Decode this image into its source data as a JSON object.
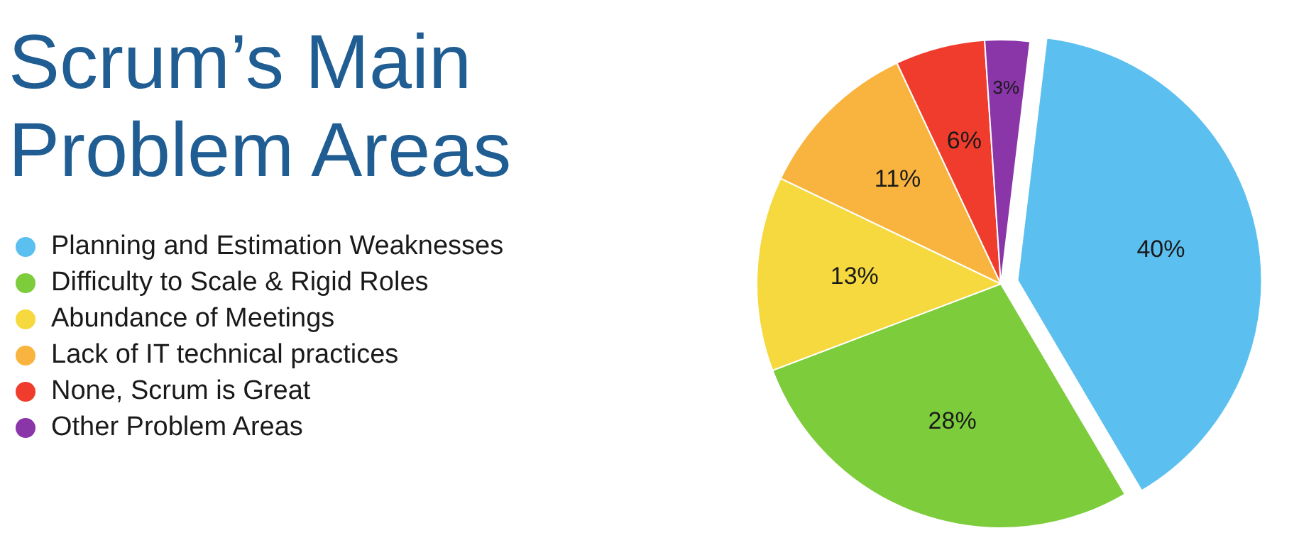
{
  "chart_data": {
    "type": "pie",
    "title": "Scrum’s Main Problem Areas",
    "categories": [
      "Planning and Estimation Weaknesses",
      "Difficulty to Scale & Rigid Roles",
      "Abundance of Meetings",
      "Lack of IT technical practices",
      "None, Scrum is Great",
      "Other Problem Areas"
    ],
    "values": [
      40,
      28,
      13,
      11,
      6,
      3
    ],
    "value_labels": [
      "40%",
      "28%",
      "13%",
      "11%",
      "6%",
      "3%"
    ],
    "colors": [
      "#5bbfef",
      "#7dcc3c",
      "#f5d93e",
      "#f8b43e",
      "#f03c2c",
      "#8a35a8"
    ],
    "legend": "left"
  }
}
